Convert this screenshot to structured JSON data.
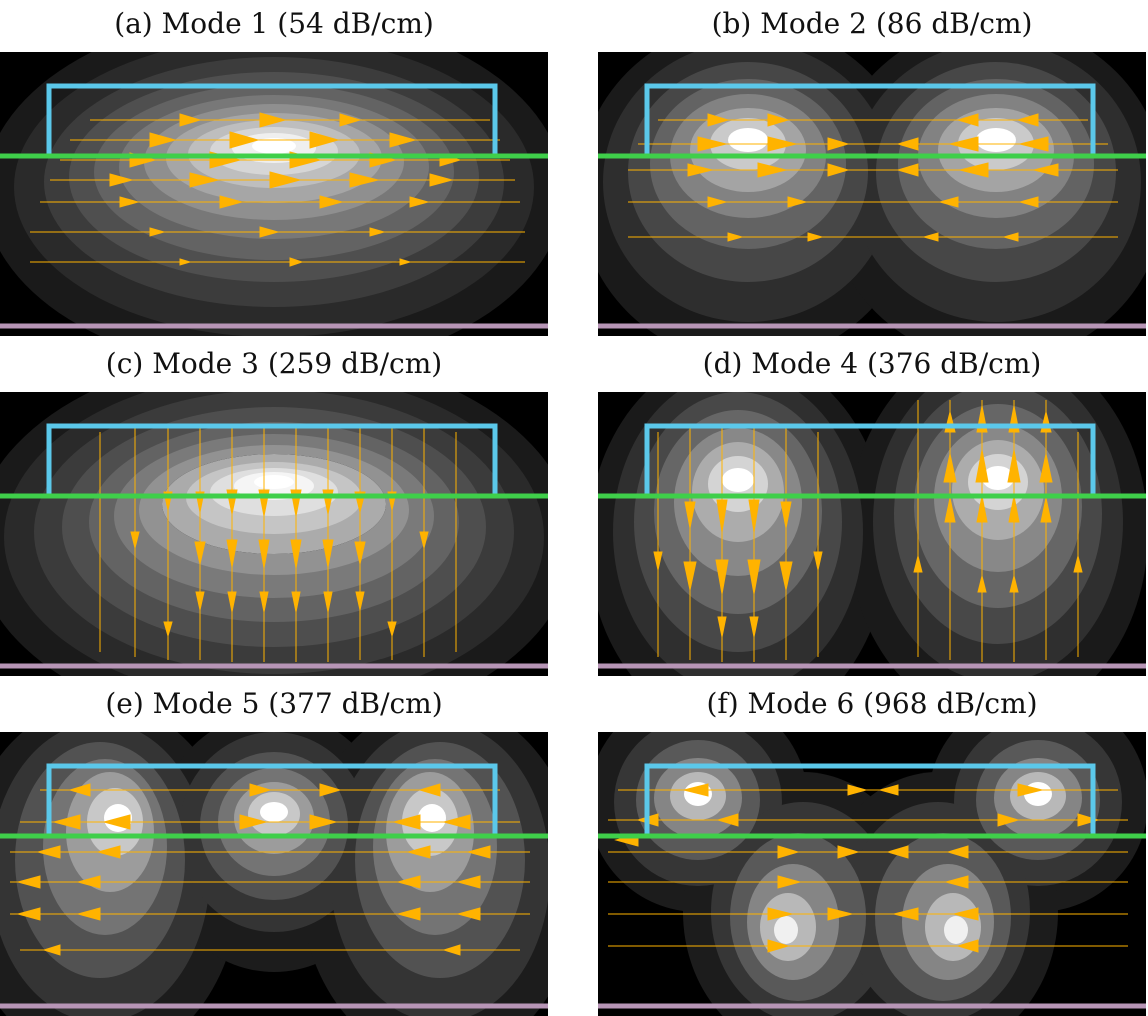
{
  "figure": {
    "panels": [
      {
        "caption": "(a) Mode 1 (54 dB/cm)",
        "pattern": "horizontal-single"
      },
      {
        "caption": "(b) Mode 2 (86 dB/cm)",
        "pattern": "horizontal-double-opposed"
      },
      {
        "caption": "(c) Mode 3 (259 dB/cm)",
        "pattern": "vertical-single"
      },
      {
        "caption": "(d) Mode 4 (376 dB/cm)",
        "pattern": "vertical-double-opposed"
      },
      {
        "caption": "(e) Mode 5 (377 dB/cm)",
        "pattern": "horizontal-triple"
      },
      {
        "caption": "(f) Mode 6 (968 dB/cm)",
        "pattern": "mixed-quad"
      }
    ],
    "colors": {
      "waveguide_outline": "#5bc8ea",
      "interface_line": "#3fcf4a",
      "substrate_line": "#b795b6",
      "arrow": "#ffb300",
      "background": "#000000"
    }
  }
}
